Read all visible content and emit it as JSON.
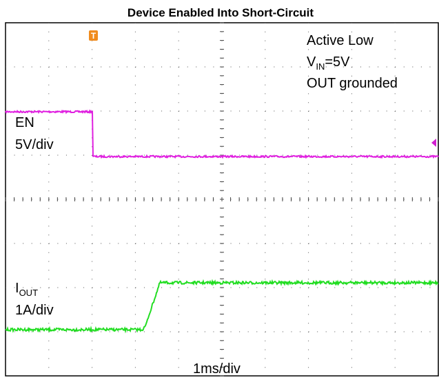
{
  "title": "Device Enabled Into Short-Circuit",
  "annotations": {
    "mode": "Active Low",
    "vin": {
      "main": "V",
      "sub": "IN",
      "rest": "=5V"
    },
    "out": "OUT grounded",
    "en_label": "EN",
    "en_scale": "5V/div",
    "iout": {
      "main": "I",
      "sub": "OUT"
    },
    "iout_scale": "1A/div",
    "time_scale": "1ms/div",
    "trigger": "T"
  }
}
